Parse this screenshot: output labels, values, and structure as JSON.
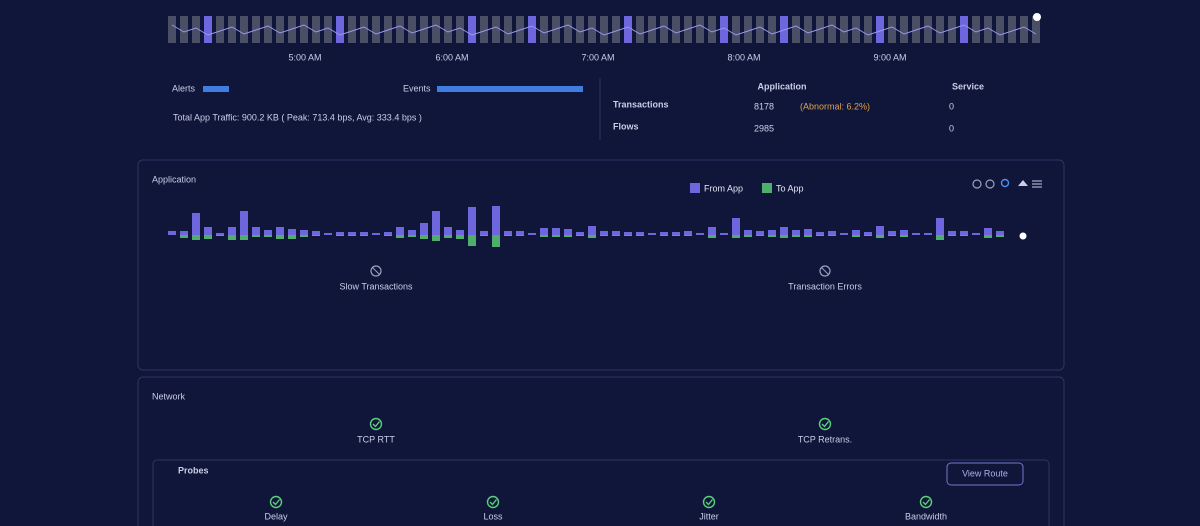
{
  "timeline": {
    "labels": [
      "5:00 AM",
      "6:00 AM",
      "7:00 AM",
      "8:00 AM",
      "9:00 AM"
    ]
  },
  "summary": {
    "alerts": "Alerts",
    "events": "Events",
    "traffic": "Total App Traffic: 900.2 KB ( Peak: 713.4 bps, Avg: 333.4 bps )"
  },
  "stats": {
    "headers": [
      "Application",
      "Service"
    ],
    "rows": [
      {
        "label": "Transactions",
        "application": "8178",
        "note": "(Abnormal: 6.2%)",
        "service": "0"
      },
      {
        "label": "Flows",
        "application": "2985",
        "service": "0"
      }
    ]
  },
  "chart_data": {
    "type": "bar",
    "title": "Application",
    "ylim": [
      -15,
      30
    ],
    "series": [
      {
        "name": "From App",
        "color": "#6e66dc",
        "values": [
          4,
          4,
          22,
          8,
          2,
          8,
          24,
          8,
          5,
          8,
          6,
          5,
          4,
          2,
          3,
          3,
          3,
          2,
          3,
          8,
          5,
          12,
          24,
          8,
          5,
          28,
          4,
          29,
          4,
          4,
          2,
          7,
          7,
          6,
          3,
          9,
          4,
          4,
          3,
          3,
          2,
          3,
          3,
          4,
          2,
          8,
          2,
          17,
          5,
          4,
          5,
          8,
          5,
          6,
          3,
          4,
          2,
          5,
          3,
          9,
          4,
          5,
          2,
          2,
          17,
          4,
          4,
          2,
          7,
          4
        ]
      },
      {
        "name": "To App",
        "color": "#4fae6b",
        "values": [
          0,
          -3,
          -5,
          -4,
          -1,
          -5,
          -5,
          -2,
          -2,
          -4,
          -4,
          -2,
          -1,
          0,
          -1,
          -1,
          -1,
          0,
          -1,
          -3,
          -2,
          -4,
          -6,
          -3,
          -4,
          -11,
          -1,
          -12,
          -1,
          -1,
          0,
          -2,
          -2,
          -2,
          -1,
          -3,
          -1,
          -1,
          -1,
          -1,
          0,
          -1,
          -1,
          -1,
          0,
          -3,
          0,
          -3,
          -2,
          -1,
          -2,
          -3,
          -2,
          -2,
          -1,
          -1,
          0,
          -2,
          -1,
          -3,
          -1,
          -2,
          0,
          0,
          -5,
          -1,
          -1,
          0,
          -3,
          -2
        ]
      }
    ]
  },
  "application_status": [
    "Slow Transactions",
    "Transaction Errors"
  ],
  "network": {
    "title": "Network",
    "checks": [
      "TCP RTT",
      "TCP Retrans."
    ],
    "probes": {
      "title": "Probes",
      "button": "View Route",
      "checks": [
        "Delay",
        "Loss",
        "Jitter",
        "Bandwidth"
      ]
    }
  }
}
